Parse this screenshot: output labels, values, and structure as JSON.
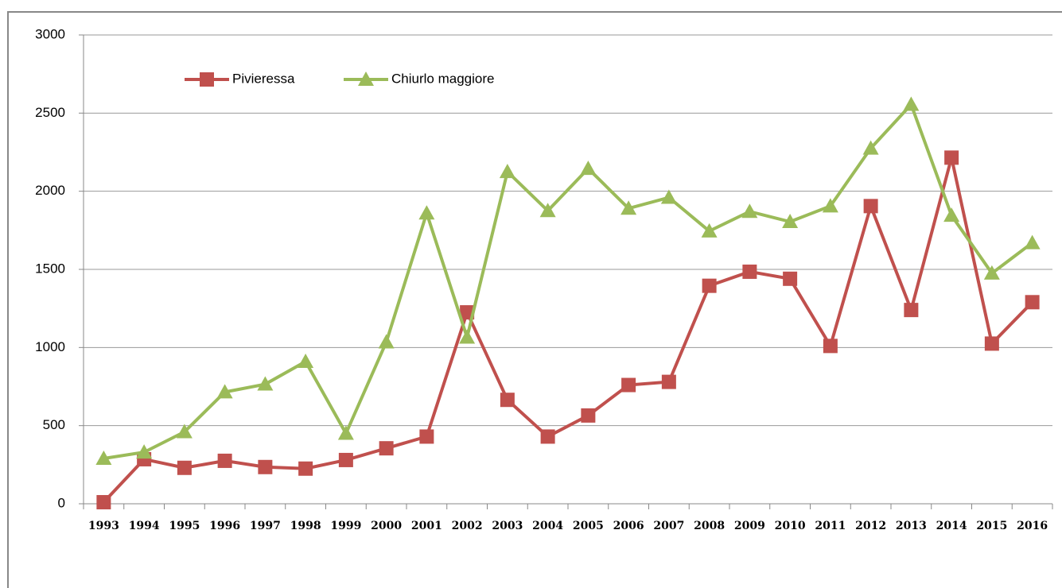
{
  "chart_data": {
    "type": "line",
    "categories": [
      "1993",
      "1994",
      "1995",
      "1996",
      "1997",
      "1998",
      "1999",
      "2000",
      "2001",
      "2002",
      "2003",
      "2004",
      "2005",
      "2006",
      "2007",
      "2008",
      "2009",
      "2010",
      "2011",
      "2012",
      "2013",
      "2014",
      "2015",
      "2016"
    ],
    "series": [
      {
        "name": "Pivieressa",
        "color": "#c0504d",
        "marker": "square",
        "values": [
          10,
          285,
          230,
          275,
          235,
          225,
          280,
          355,
          430,
          1225,
          665,
          430,
          565,
          760,
          780,
          1395,
          1485,
          1440,
          1010,
          1905,
          1240,
          2215,
          1025,
          1290
        ]
      },
      {
        "name": "Chiurlo maggiore",
        "color": "#9bbb59",
        "marker": "triangle",
        "values": [
          290,
          330,
          460,
          715,
          765,
          910,
          450,
          1035,
          1860,
          1065,
          2125,
          1875,
          2145,
          1890,
          1960,
          1745,
          1870,
          1805,
          1905,
          2275,
          2555,
          1845,
          1475,
          1670
        ]
      }
    ],
    "ylim": [
      0,
      3000
    ],
    "yticks": [
      0,
      500,
      1000,
      1500,
      2000,
      2500,
      3000
    ],
    "grid": true
  }
}
